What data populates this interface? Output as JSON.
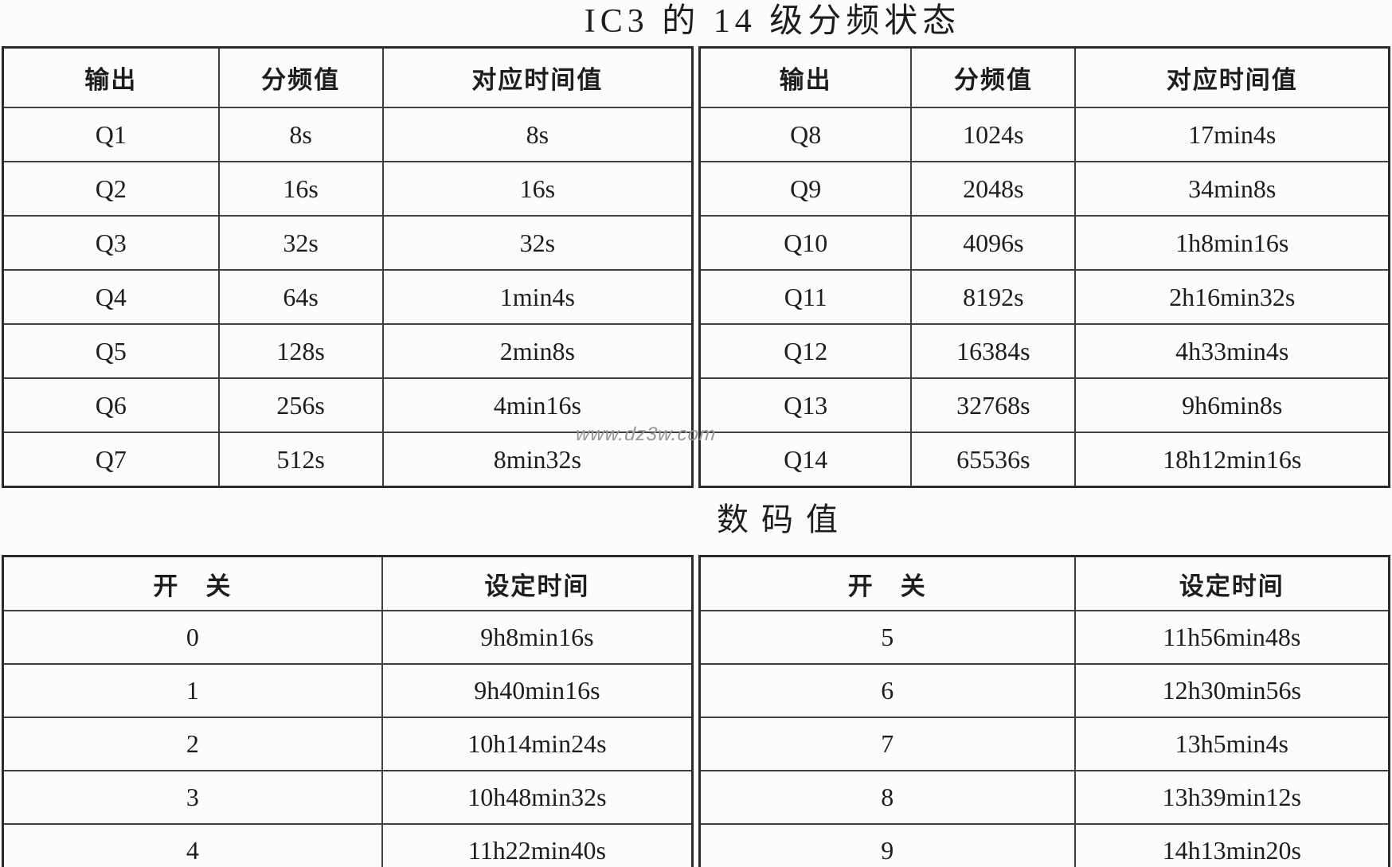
{
  "page": {
    "title1": "IC3 的 14 级分频状态",
    "title2": "数码值",
    "watermark": "www.dz3w.com"
  },
  "colors": {
    "background": "#fcfcfb",
    "text": "#1d1d1d",
    "grid_line": "#3f3f3f",
    "outer_border": "#2b2b2b",
    "watermark": "#96969a"
  },
  "table1": {
    "headers": [
      "输出",
      "分频值",
      "对应时间值"
    ],
    "left_rows": [
      [
        "Q1",
        "8s",
        "8s"
      ],
      [
        "Q2",
        "16s",
        "16s"
      ],
      [
        "Q3",
        "32s",
        "32s"
      ],
      [
        "Q4",
        "64s",
        "1min4s"
      ],
      [
        "Q5",
        "128s",
        "2min8s"
      ],
      [
        "Q6",
        "256s",
        "4min16s"
      ],
      [
        "Q7",
        "512s",
        "8min32s"
      ]
    ],
    "right_rows": [
      [
        "Q8",
        "1024s",
        "17min4s"
      ],
      [
        "Q9",
        "2048s",
        "34min8s"
      ],
      [
        "Q10",
        "4096s",
        "1h8min16s"
      ],
      [
        "Q11",
        "8192s",
        "2h16min32s"
      ],
      [
        "Q12",
        "16384s",
        "4h33min4s"
      ],
      [
        "Q13",
        "32768s",
        "9h6min8s"
      ],
      [
        "Q14",
        "65536s",
        "18h12min16s"
      ]
    ]
  },
  "table2": {
    "headers": [
      "开　关",
      "设定时间"
    ],
    "left_rows": [
      [
        "0",
        "9h8min16s"
      ],
      [
        "1",
        "9h40min16s"
      ],
      [
        "2",
        "10h14min24s"
      ],
      [
        "3",
        "10h48min32s"
      ],
      [
        "4",
        "11h22min40s"
      ]
    ],
    "right_rows": [
      [
        "5",
        "11h56min48s"
      ],
      [
        "6",
        "12h30min56s"
      ],
      [
        "7",
        "13h5min4s"
      ],
      [
        "8",
        "13h39min12s"
      ],
      [
        "9",
        "14h13min20s"
      ]
    ]
  }
}
